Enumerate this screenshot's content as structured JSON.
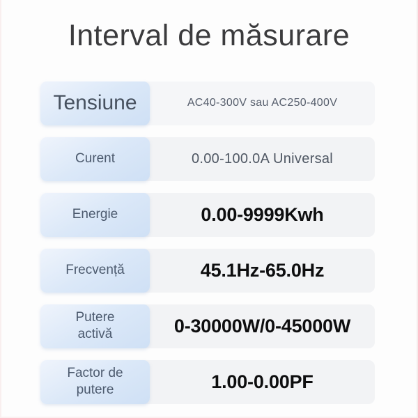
{
  "title": "Interval de măsurare",
  "table": {
    "rows": [
      {
        "label": "Tensiune",
        "value": "AC40-300V sau AC250-400V"
      },
      {
        "label": "Curent",
        "value": "0.00-100.0A Universal"
      },
      {
        "label": "Energie",
        "value": "0.00-9999Kwh"
      },
      {
        "label": "Frecvență",
        "value": "45.1Hz-65.0Hz"
      },
      {
        "label": "Putere activă",
        "value": "0-30000W/0-45000W"
      },
      {
        "label": "Factor de putere",
        "value": "1.00-0.00PF"
      }
    ]
  },
  "colors": {
    "title_text": "#3b3b3d",
    "label_text": "#4c5a6e",
    "label_cell_gradient_start": "#eff4fc",
    "label_cell_gradient_end": "#cfe0f5",
    "value_cell_bg": "#f2f3f5",
    "value_text_muted": "#4f5763",
    "value_text_strong": "#0e0e0f",
    "page_bg": "#fdfdfd"
  }
}
